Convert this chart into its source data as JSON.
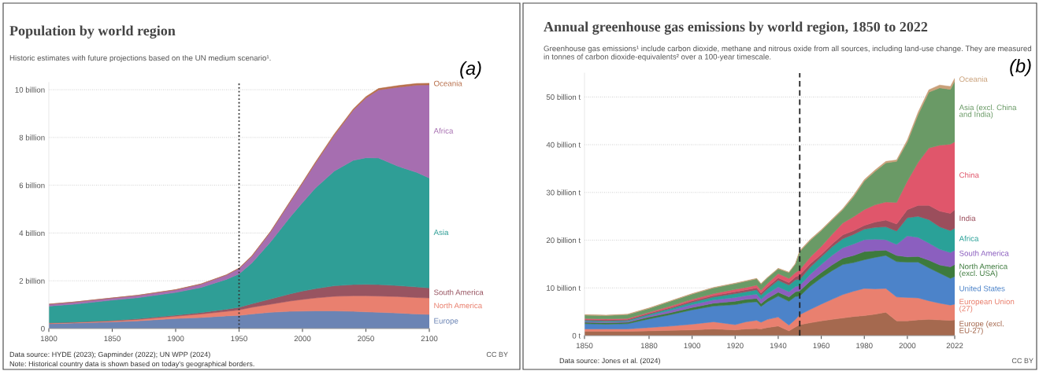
{
  "chart_data": [
    {
      "type": "area",
      "stacked": true,
      "title": "Population by world region",
      "subtitle": "Historic estimates with future projections based on the UN medium scenario¹.",
      "annotations": [
        "(a)",
        "Data source: HYDE (2023); Gapminder (2022); UN WPP (2024)",
        "Note: Historical country data is shown based on today's geographical borders.",
        "CC BY"
      ],
      "x": [
        1800,
        1820,
        1850,
        1870,
        1900,
        1920,
        1940,
        1950,
        1960,
        1975,
        1990,
        2000,
        2010,
        2025,
        2040,
        2050,
        2060,
        2075,
        2090,
        2100
      ],
      "series": [
        {
          "name": "Europe",
          "color": "#6b84b4",
          "values": [
            0.2,
            0.23,
            0.28,
            0.32,
            0.42,
            0.46,
            0.53,
            0.55,
            0.61,
            0.68,
            0.72,
            0.73,
            0.74,
            0.74,
            0.72,
            0.7,
            0.68,
            0.65,
            0.61,
            0.59
          ]
        },
        {
          "name": "North America",
          "color": "#e9806f",
          "values": [
            0.03,
            0.03,
            0.04,
            0.06,
            0.1,
            0.15,
            0.19,
            0.23,
            0.28,
            0.34,
            0.43,
            0.49,
            0.54,
            0.61,
            0.65,
            0.67,
            0.68,
            0.69,
            0.69,
            0.69
          ]
        },
        {
          "name": "South America",
          "color": "#985461",
          "values": [
            0.01,
            0.01,
            0.02,
            0.03,
            0.04,
            0.06,
            0.09,
            0.11,
            0.15,
            0.22,
            0.3,
            0.35,
            0.39,
            0.44,
            0.47,
            0.48,
            0.48,
            0.46,
            0.44,
            0.42
          ]
        },
        {
          "name": "Asia",
          "color": "#2f9e96",
          "values": [
            0.7,
            0.75,
            0.85,
            0.88,
            0.95,
            1.05,
            1.25,
            1.4,
            1.7,
            2.4,
            3.2,
            3.7,
            4.2,
            4.8,
            5.2,
            5.3,
            5.3,
            5.0,
            4.8,
            4.6
          ]
        },
        {
          "name": "Africa",
          "color": "#a66eb0",
          "values": [
            0.08,
            0.09,
            0.09,
            0.1,
            0.11,
            0.14,
            0.18,
            0.23,
            0.28,
            0.42,
            0.63,
            0.82,
            1.04,
            1.5,
            2.1,
            2.5,
            2.85,
            3.3,
            3.65,
            3.9
          ]
        },
        {
          "name": "Oceania",
          "color": "#b76e4a",
          "values": [
            0.0,
            0.0,
            0.0,
            0.0,
            0.01,
            0.01,
            0.01,
            0.01,
            0.02,
            0.02,
            0.03,
            0.03,
            0.04,
            0.05,
            0.05,
            0.06,
            0.06,
            0.07,
            0.07,
            0.07
          ]
        }
      ],
      "xlim": [
        1800,
        2100
      ],
      "xticks": [
        1800,
        1850,
        1900,
        1950,
        2000,
        2050,
        2100
      ],
      "ylim": [
        0,
        10.3
      ],
      "yticks": [
        0,
        {
          "value": 2,
          "label": "2 billion"
        },
        {
          "value": 4,
          "label": "4 billion"
        },
        {
          "value": 6,
          "label": "6 billion"
        },
        {
          "value": 8,
          "label": "8 billion"
        },
        {
          "value": 10,
          "label": "10 billion"
        }
      ],
      "ref_lines": [
        {
          "axis": "x",
          "value": 1950,
          "color": "#333333",
          "line_style": "dotted"
        }
      ],
      "grid": "y",
      "legend": false
    },
    {
      "type": "area",
      "stacked": true,
      "title": "Annual greenhouse gas emissions by world region, 1850 to 2022",
      "subtitle": "Greenhouse gas emissions¹ include carbon dioxide, methane and nitrous oxide from all sources, including land-use change. They are measured in tonnes of carbon dioxide-equivalents² over a 100-year timescale.",
      "annotations": [
        "(b)",
        "Data source: Jones et al. (2024)",
        "CC BY"
      ],
      "x": [
        1850,
        1860,
        1870,
        1880,
        1890,
        1900,
        1910,
        1920,
        1925,
        1930,
        1932,
        1935,
        1940,
        1945,
        1948,
        1950,
        1955,
        1960,
        1965,
        1970,
        1975,
        1980,
        1985,
        1990,
        1995,
        2000,
        2005,
        2010,
        2015,
        2020,
        2022
      ],
      "series": [
        {
          "name": "Europe (excl.\nEU-27)",
          "color": "#a5694f",
          "values": [
            0.9,
            0.9,
            0.9,
            1.0,
            1.1,
            1.2,
            1.4,
            1.2,
            1.4,
            1.5,
            1.4,
            1.7,
            2.0,
            1.0,
            1.8,
            2.3,
            2.7,
            3.1,
            3.4,
            3.7,
            4.0,
            4.2,
            4.5,
            4.9,
            3.1,
            3.1,
            3.3,
            3.4,
            3.3,
            3.2,
            3.3
          ]
        },
        {
          "name": "European Union\n(27)",
          "color": "#e9806f",
          "values": [
            0.5,
            0.5,
            0.5,
            0.7,
            0.9,
            1.2,
            1.5,
            1.1,
            1.5,
            1.7,
            1.4,
            1.7,
            1.9,
            1.2,
            1.6,
            2.1,
            2.8,
            3.5,
            4.2,
            4.9,
            5.3,
            5.7,
            5.3,
            5.0,
            5.0,
            4.9,
            4.6,
            3.9,
            3.5,
            3.2,
            3.3
          ]
        },
        {
          "name": "United States",
          "color": "#4c83c9",
          "values": [
            1.1,
            1.0,
            1.1,
            1.8,
            2.4,
            3.0,
            3.3,
            4.2,
            4.0,
            3.9,
            3.3,
            3.7,
            4.4,
            5.0,
            4.8,
            3.9,
            4.9,
            5.5,
            6.0,
            6.3,
            6.0,
            6.0,
            6.6,
            6.9,
            7.4,
            7.4,
            7.5,
            6.9,
            6.3,
            5.6,
            5.8
          ]
        },
        {
          "name": "North America\n(excl. USA)",
          "color": "#3d7a3d",
          "values": [
            0.3,
            0.3,
            0.3,
            0.4,
            0.4,
            0.5,
            0.6,
            0.7,
            0.7,
            0.7,
            0.6,
            0.7,
            0.8,
            0.9,
            1.0,
            1.1,
            1.1,
            1.1,
            1.2,
            1.3,
            1.5,
            1.7,
            1.4,
            1.1,
            1.3,
            1.1,
            1.2,
            1.6,
            1.7,
            2.4,
            2.5
          ]
        },
        {
          "name": "South America",
          "color": "#8b5fbf",
          "values": [
            0.2,
            0.2,
            0.2,
            0.3,
            0.5,
            0.6,
            0.7,
            0.8,
            0.8,
            0.9,
            0.9,
            1.0,
            1.1,
            1.1,
            1.1,
            1.1,
            1.4,
            1.7,
            2.0,
            2.2,
            2.4,
            2.5,
            2.4,
            2.2,
            2.3,
            4.4,
            4.0,
            3.6,
            3.3,
            3.0,
            3.0
          ]
        },
        {
          "name": "Africa",
          "color": "#2aa198",
          "values": [
            0.2,
            0.2,
            0.2,
            0.3,
            0.4,
            0.5,
            0.6,
            0.8,
            0.8,
            0.9,
            0.9,
            1.0,
            1.4,
            1.4,
            1.4,
            1.3,
            1.5,
            1.6,
            1.8,
            1.9,
            2.0,
            2.2,
            2.5,
            2.7,
            2.8,
            3.8,
            4.4,
            4.9,
            4.7,
            4.6,
            4.6
          ]
        },
        {
          "name": "India",
          "color": "#9b4e5c",
          "values": [
            0.2,
            0.2,
            0.2,
            0.2,
            0.2,
            0.3,
            0.3,
            0.4,
            0.4,
            0.4,
            0.4,
            0.4,
            0.5,
            0.5,
            0.6,
            0.9,
            0.7,
            0.5,
            0.6,
            0.8,
            0.8,
            0.8,
            1.1,
            1.4,
            1.5,
            1.7,
            2.3,
            3.0,
            3.3,
            3.6,
            3.9
          ]
        },
        {
          "name": "China",
          "color": "#e0566b",
          "values": [
            0.2,
            0.2,
            0.2,
            0.2,
            0.3,
            0.3,
            0.4,
            0.5,
            0.5,
            0.6,
            0.6,
            0.7,
            0.9,
            0.9,
            0.9,
            1.1,
            1.4,
            1.7,
            2.0,
            2.5,
            2.9,
            3.3,
            3.6,
            3.8,
            4.5,
            6.0,
            9.0,
            12.0,
            13.8,
            14.5,
            14.2
          ]
        },
        {
          "name": "Asia (excl. China\nand India)",
          "color": "#6a9a66",
          "values": [
            0.7,
            0.7,
            0.8,
            0.8,
            1.0,
            1.1,
            1.2,
            1.2,
            1.3,
            1.3,
            1.3,
            1.2,
            1.0,
            1.2,
            1.8,
            3.8,
            3.5,
            3.3,
            3.0,
            2.8,
            4.2,
            6.0,
            7.0,
            8.2,
            8.6,
            8.2,
            10.0,
            11.7,
            12.0,
            11.5,
            12.7
          ]
        },
        {
          "name": "Oceania",
          "color": "#c9a079",
          "values": [
            0.1,
            0.1,
            0.1,
            0.1,
            0.1,
            0.1,
            0.1,
            0.1,
            0.1,
            0.1,
            0.1,
            0.1,
            0.1,
            0.1,
            0.1,
            0.2,
            0.2,
            0.2,
            0.2,
            0.2,
            0.3,
            0.3,
            0.3,
            0.3,
            0.3,
            0.4,
            0.5,
            0.5,
            0.6,
            0.6,
            0.6
          ]
        }
      ],
      "xlim": [
        1850,
        2022
      ],
      "xticks": [
        1850,
        1880,
        1900,
        1920,
        1940,
        1960,
        1980,
        2000,
        2022
      ],
      "ylim": [
        0,
        55
      ],
      "yticks": [
        {
          "value": 0,
          "label": "0 t"
        },
        {
          "value": 10,
          "label": "10 billion t"
        },
        {
          "value": 20,
          "label": "20 billion t"
        },
        {
          "value": 30,
          "label": "30 billion t"
        },
        {
          "value": 40,
          "label": "40 billion t"
        },
        {
          "value": 50,
          "label": "50 billion t"
        }
      ],
      "ref_lines": [
        {
          "axis": "x",
          "value": 1950,
          "color": "#222222",
          "line_style": "dashed"
        }
      ],
      "grid": "y",
      "legend": false
    }
  ]
}
